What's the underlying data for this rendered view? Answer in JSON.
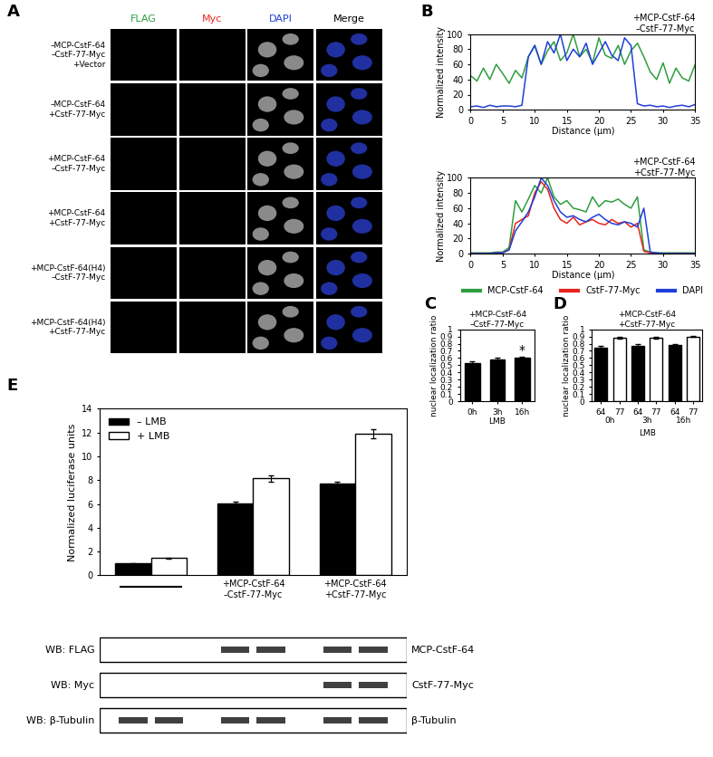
{
  "panel_labels": [
    "A",
    "B",
    "C",
    "D",
    "E"
  ],
  "panel_A": {
    "columns": [
      {
        "text": "FLAG",
        "color": "#2e9e3e"
      },
      {
        "text": "Myc",
        "color": "#e8231d"
      },
      {
        "text": "DAPI",
        "color": "#1f3fd8"
      },
      {
        "text": "Merge",
        "color": "#000000"
      }
    ],
    "rows": [
      "–MCP-CstF-64\n–CstF-77-Myc\n+Vector",
      "–MCP-CstF-64\n+CstF-77-Myc",
      "+MCP-CstF-64\n–CstF-77-Myc",
      "+MCP-CstF-64\n+CstF-77-Myc",
      "+MCP-CstF-64(H4)\n–CstF-77-Myc",
      "+MCP-CstF-64(H4)\n+CstF-77-Myc"
    ]
  },
  "chart_data": [
    {
      "type": "line",
      "title": "+MCP-CstF-64\n–CstF-77-Myc",
      "x_label": "Distance (μm)",
      "y_label": "Normalized intensity",
      "x": [
        0,
        1,
        2,
        3,
        4,
        5,
        6,
        7,
        8,
        9,
        10,
        11,
        12,
        13,
        14,
        15,
        16,
        17,
        18,
        19,
        20,
        21,
        22,
        23,
        24,
        25,
        26,
        27,
        28,
        29,
        30,
        31,
        32,
        33,
        34,
        35
      ],
      "xlim": [
        0,
        35
      ],
      "ylim": [
        0,
        100
      ],
      "xticks": [
        0,
        5,
        10,
        15,
        20,
        25,
        30,
        35
      ],
      "yticks": [
        0,
        20,
        40,
        60,
        80,
        100
      ],
      "series": [
        {
          "name": "MCP-CstF-64",
          "color": "#2e9e3e",
          "values": [
            45,
            38,
            55,
            40,
            60,
            48,
            35,
            52,
            42,
            70,
            85,
            60,
            78,
            90,
            65,
            75,
            100,
            70,
            80,
            62,
            95,
            72,
            68,
            85,
            60,
            78,
            88,
            70,
            50,
            40,
            62,
            35,
            55,
            42,
            38,
            60
          ]
        },
        {
          "name": "DAPI",
          "color": "#1f3fd8",
          "values": [
            4,
            5,
            3,
            6,
            4,
            5,
            5,
            4,
            6,
            70,
            85,
            60,
            90,
            75,
            100,
            65,
            80,
            70,
            88,
            60,
            75,
            90,
            72,
            65,
            95,
            85,
            8,
            5,
            6,
            4,
            5,
            3,
            5,
            6,
            4,
            7
          ]
        }
      ]
    },
    {
      "type": "line",
      "title": "+MCP-CstF-64\n+CstF-77-Myc",
      "x_label": "Distance (μm)",
      "y_label": "Normalized intensity",
      "x": [
        0,
        1,
        2,
        3,
        4,
        5,
        6,
        7,
        8,
        9,
        10,
        11,
        12,
        13,
        14,
        15,
        16,
        17,
        18,
        19,
        20,
        21,
        22,
        23,
        24,
        25,
        26,
        27,
        28,
        29,
        30,
        31,
        32,
        33,
        34,
        35
      ],
      "xlim": [
        0,
        35
      ],
      "ylim": [
        0,
        100
      ],
      "xticks": [
        0,
        5,
        10,
        15,
        20,
        25,
        30,
        35
      ],
      "yticks": [
        0,
        20,
        40,
        60,
        80,
        100
      ],
      "legend": "bottom",
      "series": [
        {
          "name": "MCP-CstF-64",
          "color": "#2e9e3e",
          "values": [
            1,
            1,
            1,
            1,
            2,
            2,
            8,
            70,
            55,
            72,
            90,
            80,
            100,
            75,
            65,
            70,
            60,
            58,
            55,
            75,
            62,
            70,
            68,
            72,
            65,
            60,
            75,
            5,
            2,
            1,
            1,
            1,
            1,
            1,
            1,
            1
          ]
        },
        {
          "name": "CstF-77-Myc",
          "color": "#e8231d",
          "values": [
            0,
            0,
            0,
            0,
            1,
            1,
            5,
            40,
            45,
            50,
            80,
            95,
            85,
            60,
            45,
            40,
            48,
            38,
            42,
            45,
            40,
            38,
            45,
            40,
            42,
            35,
            40,
            3,
            1,
            0,
            0,
            0,
            0,
            0,
            0,
            0
          ]
        },
        {
          "name": "DAPI",
          "color": "#1f3fd8",
          "values": [
            0,
            0,
            0,
            0,
            1,
            1,
            5,
            30,
            42,
            55,
            75,
            100,
            90,
            70,
            55,
            48,
            50,
            45,
            42,
            48,
            52,
            45,
            40,
            38,
            42,
            40,
            35,
            60,
            2,
            1,
            0,
            0,
            0,
            0,
            0,
            0
          ]
        }
      ]
    },
    {
      "type": "bar",
      "title": "+MCP-CstF-64\n–CstF-77-Myc",
      "y_label": "nuclear localization ratio",
      "x_label": "LMB",
      "categories": [
        "0h",
        "3h",
        "16h"
      ],
      "values": [
        0.53,
        0.58,
        0.6
      ],
      "errors": [
        0.02,
        0.02,
        0.015
      ],
      "color": "#000000",
      "ylim": [
        0,
        1
      ],
      "yticks": [
        0,
        0.1,
        0.2,
        0.3,
        0.4,
        0.5,
        0.6,
        0.7,
        0.8,
        0.9,
        1
      ],
      "annotations": [
        {
          "category": "16h",
          "text": "*"
        }
      ]
    },
    {
      "type": "bar",
      "title": "+MCP-CstF-64\n+CstF-77-Myc",
      "y_label": "nuclear localization ratio",
      "x_label": "LMB",
      "categories": [
        "64",
        "77",
        "64",
        "77",
        "64",
        "77"
      ],
      "groups": [
        "0h",
        "3h",
        "16h"
      ],
      "values": [
        0.75,
        0.88,
        0.77,
        0.88,
        0.78,
        0.9
      ],
      "errors": [
        0.02,
        0.01,
        0.02,
        0.015,
        0.02,
        0.01
      ],
      "colors": [
        "#000000",
        "#ffffff",
        "#000000",
        "#ffffff",
        "#000000",
        "#ffffff"
      ],
      "ylim": [
        0,
        1
      ],
      "yticks": [
        0,
        0.1,
        0.2,
        0.3,
        0.4,
        0.5,
        0.6,
        0.7,
        0.8,
        0.9,
        1
      ]
    },
    {
      "type": "bar",
      "y_label": "Normalized luciferase units",
      "categories": [
        null,
        "+MCP-CstF-64\n–CstF-77-Myc",
        "+MCP-CstF-64\n+CstF-77-Myc"
      ],
      "series": [
        {
          "name": "– LMB",
          "color": "#000000",
          "values": [
            1.0,
            6.05,
            7.75
          ],
          "errors": [
            0.05,
            0.12,
            0.1
          ]
        },
        {
          "name": "+ LMB",
          "color": "#ffffff",
          "values": [
            1.45,
            8.15,
            11.9
          ],
          "errors": [
            0.05,
            0.25,
            0.35
          ]
        }
      ],
      "ylim": [
        0,
        14
      ],
      "yticks": [
        0,
        2,
        4,
        6,
        8,
        10,
        12,
        14
      ],
      "legend": "upper left"
    }
  ],
  "blots": {
    "rows": [
      {
        "left": "WB: FLAG",
        "right": "MCP-CstF-64",
        "bands": [
          0,
          0,
          1,
          1,
          1,
          1
        ]
      },
      {
        "left": "WB: Myc",
        "right": "CstF-77-Myc",
        "bands": [
          0,
          0,
          0,
          0,
          1,
          1
        ]
      },
      {
        "left": "WB: β-Tubulin",
        "right": "β-Tubulin",
        "bands": [
          1,
          1,
          1,
          1,
          1,
          1
        ]
      }
    ]
  }
}
